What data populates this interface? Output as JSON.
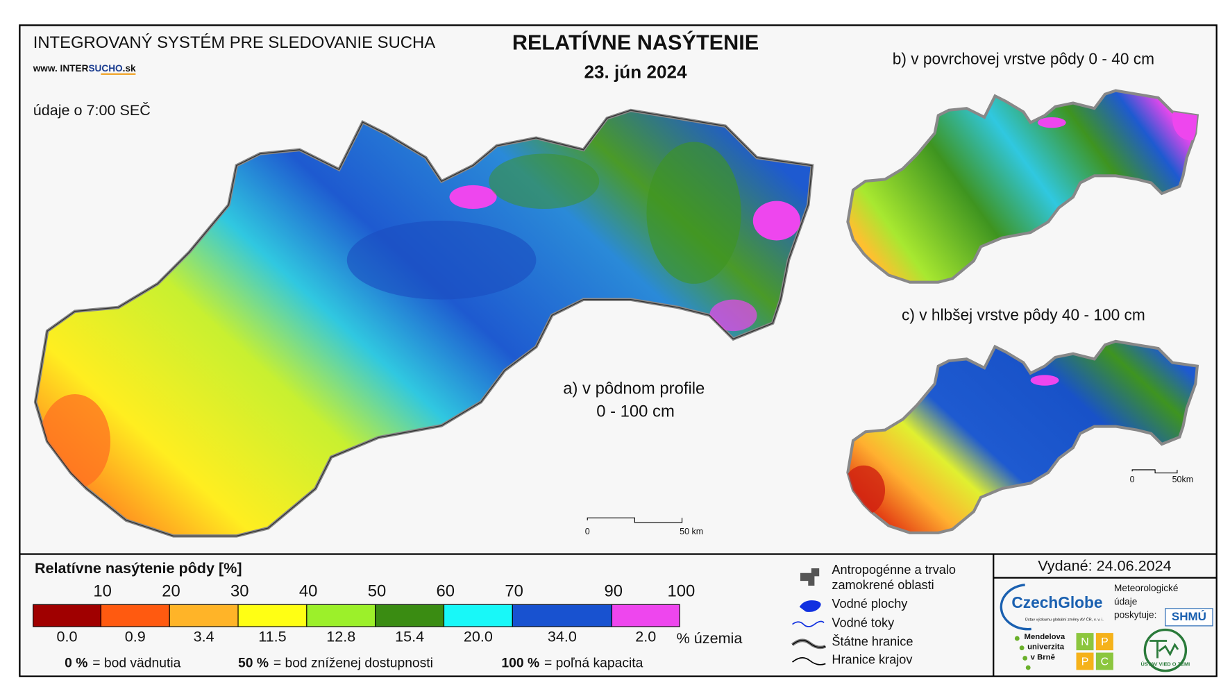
{
  "header": {
    "system": "INTEGROVANÝ SYSTÉM PRE SLEDOVANIE SUCHA",
    "url_prefix": "www. INTER",
    "url_brand": "SUCHO",
    "url_suffix": ".sk",
    "title": "RELATÍVNE NASÝTENIE",
    "date": "23. jún 2024",
    "data_time": "údaje o 7:00 SEČ"
  },
  "maps": [
    {
      "label_line1": "a) v pôdnom profile",
      "label_line2": "0 - 100 cm",
      "scale_start": "0",
      "scale_end": "50 km"
    },
    {
      "label": "b) v povrchovej vrstve pôdy 0 - 40 cm"
    },
    {
      "label": "c) v hlbšej vrstve pôdy 40 - 100 cm",
      "scale_start": "0",
      "scale_end": "50km"
    }
  ],
  "legend": {
    "title": "Relatívne nasýtenie pôdy [%]",
    "classes": [
      {
        "color": "#a00000",
        "upper": "10",
        "share": "0.0"
      },
      {
        "color": "#ff5a10",
        "upper": "20",
        "share": "0.9"
      },
      {
        "color": "#ffb428",
        "upper": "30",
        "share": "3.4"
      },
      {
        "color": "#ffff14",
        "upper": "40",
        "share": "11.5"
      },
      {
        "color": "#9cf02a",
        "upper": "50",
        "share": "12.8"
      },
      {
        "color": "#3a8c12",
        "upper": "60",
        "share": "15.4"
      },
      {
        "color": "#18f8f8",
        "upper": "70",
        "share": "20.0"
      },
      {
        "color": "#1852d0",
        "upper": "90",
        "share": "34.0"
      },
      {
        "color": "#ee46ee",
        "upper": "100",
        "share": "2.0"
      }
    ],
    "share_unit": "% územia",
    "notes": [
      {
        "value": "0 %",
        "text": "= bod vädnutia"
      },
      {
        "value": "50 %",
        "text": "= bod zníženej dostupnosti"
      },
      {
        "value": "100 %",
        "text": "= poľná kapacita"
      }
    ]
  },
  "symbols": [
    [
      "Antropogénne a trvalo",
      "zamokrené oblasti"
    ],
    [
      "Vodné plochy"
    ],
    [
      "Vodné toky"
    ],
    [
      "Štátne hranice"
    ],
    [
      "Hranice krajov"
    ]
  ],
  "footer": {
    "issued": "Vydané: 24.06.2024",
    "provider": [
      "Meteorologické",
      "údaje",
      "poskytuje:"
    ],
    "czechglobe": "CzechGlobe",
    "czechglobe_sub": "Ústav výzkumu globální změny AV ČR, v. v. i.",
    "shmu": "SHMÚ",
    "mendel": [
      "Mendelova",
      "univerzita",
      "v Brně"
    ],
    "nppc": [
      "N",
      "P",
      "P",
      "C"
    ],
    "uvz": "ÚSTAV VIED O ZEMI"
  }
}
